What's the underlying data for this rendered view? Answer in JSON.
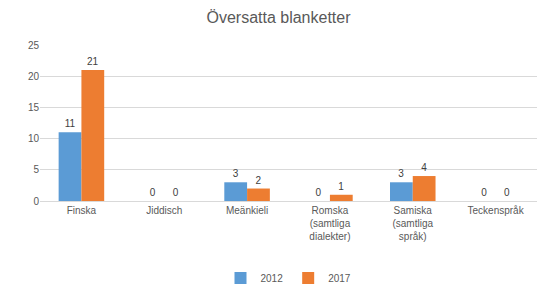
{
  "chart_data": {
    "type": "bar",
    "title": "Översatta blanketter",
    "categories": [
      "Finska",
      "Jiddisch",
      "Meänkieli",
      "Romska (samtliga dialekter)",
      "Samiska (samtliga språk)",
      "Teckenspråk"
    ],
    "series": [
      {
        "name": "2012",
        "color": "#5b9bd5",
        "values": [
          11,
          0,
          3,
          0,
          3,
          0
        ]
      },
      {
        "name": "2017",
        "color": "#ed7d31",
        "values": [
          21,
          0,
          2,
          1,
          4,
          0
        ]
      }
    ],
    "ylim": [
      0,
      25
    ],
    "yticks": [
      0,
      5,
      10,
      15,
      20,
      25
    ],
    "grid": true,
    "legend": "bottom",
    "data_labels": true
  }
}
